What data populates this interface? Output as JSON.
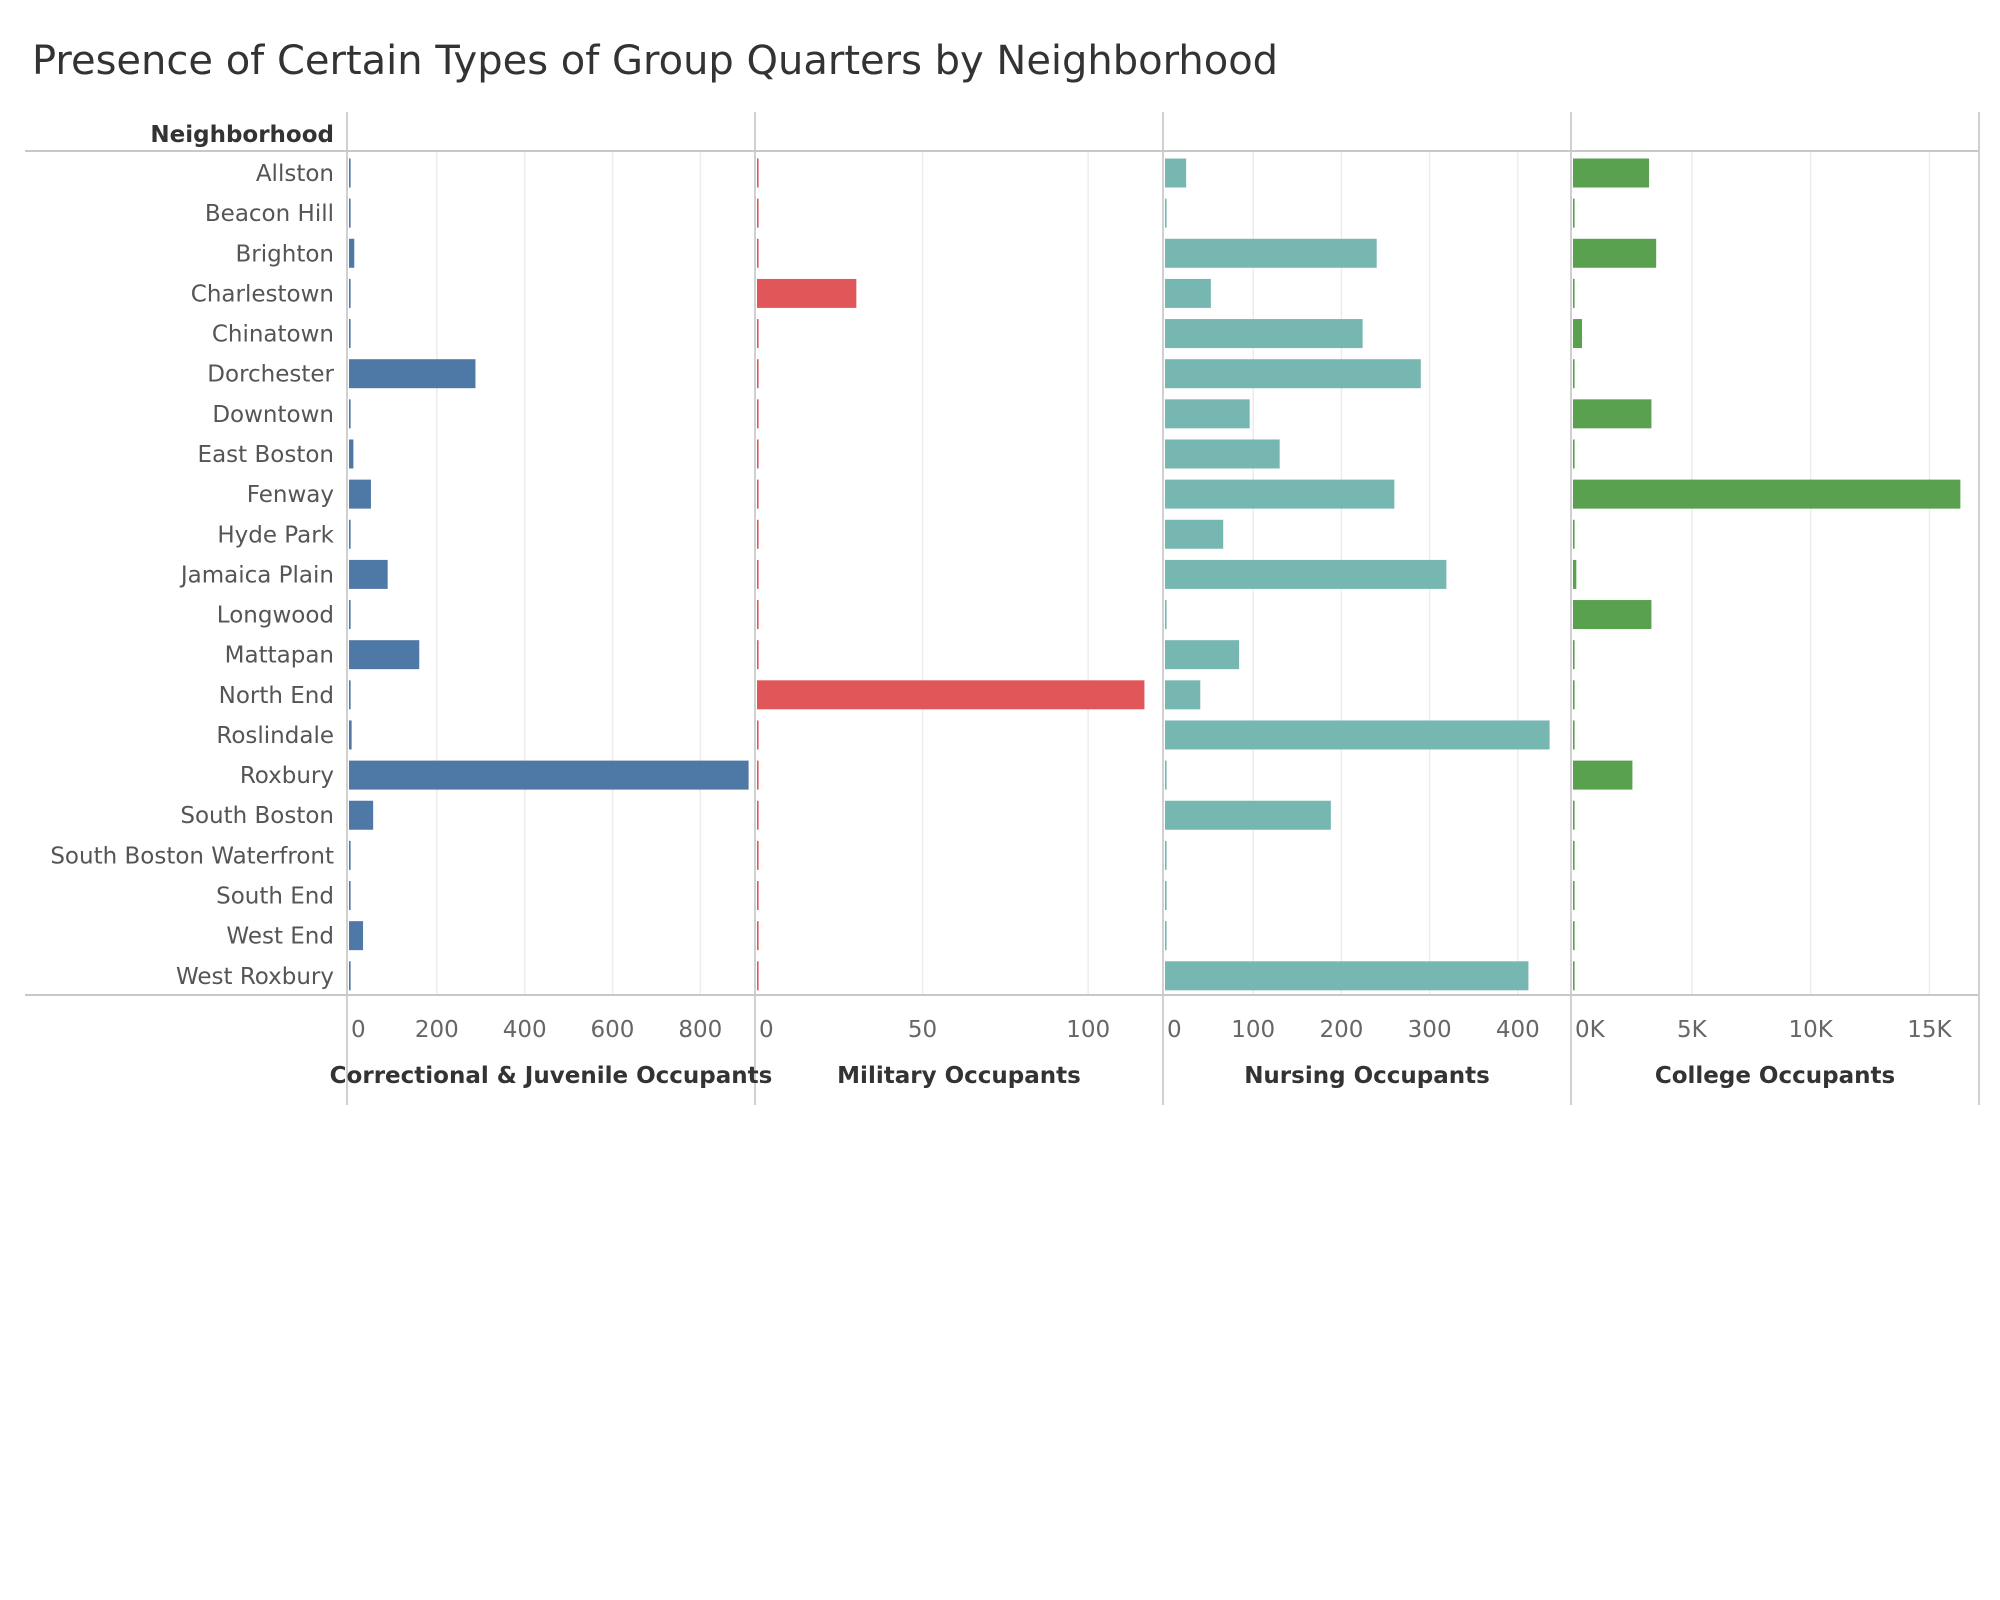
{
  "title": "Presence of Certain Types of Group Quarters by Neighborhood",
  "chart_data": {
    "type": "bar",
    "orientation": "horizontal",
    "title": "Presence of Certain Types of Group Quarters by Neighborhood",
    "row_header": "Neighborhood",
    "categories": [
      "Allston",
      "Beacon Hill",
      "Brighton",
      "Charlestown",
      "Chinatown",
      "Dorchester",
      "Downtown",
      "East Boston",
      "Fenway",
      "Hyde Park",
      "Jamaica Plain",
      "Longwood",
      "Mattapan",
      "North End",
      "Roslindale",
      "Roxbury",
      "South Boston",
      "South Boston Waterfront",
      "South End",
      "West End",
      "West Roxbury"
    ],
    "series": [
      {
        "name": "Correctional & Juvenile Occupants",
        "color": "#4e79a7",
        "xlim": [
          0,
          920
        ],
        "ticks": [
          0,
          200,
          400,
          600,
          800
        ],
        "tick_labels": [
          "0",
          "200",
          "400",
          "600",
          "800"
        ],
        "values": [
          2,
          1,
          12,
          2,
          1,
          288,
          1,
          10,
          50,
          1,
          88,
          1,
          160,
          2,
          6,
          910,
          55,
          1,
          1,
          32,
          1
        ]
      },
      {
        "name": "Military Occupants",
        "color": "#e15759",
        "xlim": [
          0,
          122
        ],
        "ticks": [
          0,
          50,
          100
        ],
        "tick_labels": [
          "0",
          "50",
          "100"
        ],
        "values": [
          0,
          0,
          0,
          30,
          0,
          0,
          0,
          0,
          0,
          0,
          0,
          0,
          0,
          117,
          0,
          0,
          0,
          0,
          0,
          0,
          0
        ]
      },
      {
        "name": "Nursing Occupants",
        "color": "#76b7b2",
        "xlim": [
          0,
          458
        ],
        "ticks": [
          0,
          100,
          200,
          300,
          400
        ],
        "tick_labels": [
          "0",
          "100",
          "200",
          "300",
          "400"
        ],
        "values": [
          24,
          1,
          240,
          52,
          224,
          290,
          96,
          130,
          260,
          66,
          319,
          1,
          84,
          40,
          436,
          1,
          188,
          1,
          1,
          1,
          412
        ]
      },
      {
        "name": "College Occupants",
        "color": "#59a14f",
        "xlim": [
          0,
          17000
        ],
        "ticks": [
          0,
          5000,
          10000,
          15000
        ],
        "tick_labels": [
          "0K",
          "5K",
          "10K",
          "15K"
        ],
        "values": [
          3200,
          30,
          3500,
          30,
          380,
          30,
          3300,
          30,
          16300,
          30,
          140,
          3300,
          30,
          30,
          30,
          2500,
          30,
          30,
          30,
          30,
          30
        ]
      }
    ],
    "grid": true
  }
}
